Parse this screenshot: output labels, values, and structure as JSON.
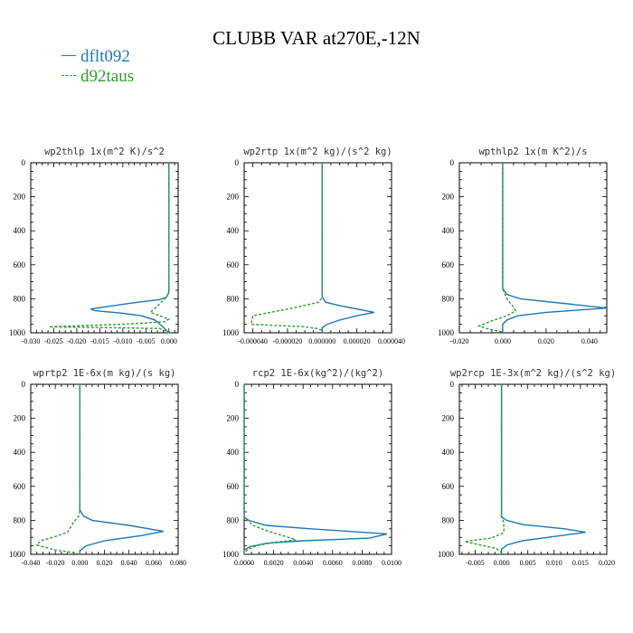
{
  "title": "CLUBB VAR at270E,-12N",
  "legend": [
    {
      "label": "dflt092",
      "color": "#1f77b4",
      "style": "solid"
    },
    {
      "label": "d92taus",
      "color": "#2ca02c",
      "style": "dashed"
    }
  ],
  "chart_data": [
    {
      "type": "line",
      "title": "wp2thlp  1x(m^2 K)/s^2",
      "xlim": [
        -0.03,
        0.002
      ],
      "ylim": [
        1000,
        0
      ],
      "xticks": [
        -0.03,
        -0.025,
        -0.02,
        -0.015,
        -0.01,
        -0.005,
        0.0
      ],
      "xtick_labels": [
        "-0.030",
        "-0.025",
        "-0.020",
        "-0.015",
        "-0.010",
        "-0.005",
        "0.000"
      ],
      "yticks": [
        0,
        200,
        400,
        600,
        800,
        1000
      ],
      "series": [
        {
          "name": "dflt092",
          "points": [
            [
              0,
              0
            ],
            [
              0,
              500
            ],
            [
              0,
              760
            ],
            [
              -0.0005,
              790
            ],
            [
              -0.002,
              805
            ],
            [
              -0.008,
              825
            ],
            [
              -0.017,
              860
            ],
            [
              -0.016,
              870
            ],
            [
              -0.01,
              885
            ],
            [
              -0.006,
              900
            ],
            [
              -0.003,
              925
            ],
            [
              -0.0015,
              960
            ],
            [
              0,
              1000
            ]
          ]
        },
        {
          "name": "d92taus",
          "points": [
            [
              0,
              0
            ],
            [
              0,
              500
            ],
            [
              0,
              760
            ],
            [
              -0.0005,
              790
            ],
            [
              -0.002,
              830
            ],
            [
              -0.004,
              880
            ],
            [
              -0.002,
              900
            ],
            [
              0,
              920
            ],
            [
              -0.001,
              935
            ],
            [
              -0.01,
              950
            ],
            [
              -0.026,
              965
            ],
            [
              -0.012,
              970
            ],
            [
              -0.002,
              975
            ],
            [
              0,
              1000
            ]
          ]
        }
      ]
    },
    {
      "type": "line",
      "title": "wp2rtp  1x(m^2 kg)/(s^2 kg)",
      "xlim": [
        -4.5e-05,
        4e-05
      ],
      "ylim": [
        1000,
        0
      ],
      "xticks": [
        -4e-05,
        -2e-05,
        0.0,
        2e-05,
        4e-05
      ],
      "xtick_labels": [
        "-0.000040",
        "-0.000020",
        "0.000000",
        "0.000020",
        "0.000040"
      ],
      "yticks": [
        0,
        200,
        400,
        600,
        800,
        1000
      ],
      "series": [
        {
          "name": "dflt092",
          "points": [
            [
              0,
              0
            ],
            [
              0,
              500
            ],
            [
              0,
              790
            ],
            [
              2e-06,
              820
            ],
            [
              1e-05,
              840
            ],
            [
              3e-05,
              880
            ],
            [
              2e-05,
              900
            ],
            [
              1e-05,
              925
            ],
            [
              3e-06,
              950
            ],
            [
              0,
              970
            ],
            [
              0,
              1000
            ]
          ]
        },
        {
          "name": "d92taus",
          "points": [
            [
              0,
              0
            ],
            [
              0,
              500
            ],
            [
              0,
              790
            ],
            [
              -2e-06,
              820
            ],
            [
              -1.5e-05,
              850
            ],
            [
              -4e-05,
              900
            ],
            [
              -4.1e-05,
              950
            ],
            [
              -1e-05,
              965
            ],
            [
              -3e-06,
              975
            ],
            [
              0,
              985
            ],
            [
              0,
              1000
            ]
          ]
        }
      ]
    },
    {
      "type": "line",
      "title": "wpthlp2  1x(m K^2)/s",
      "xlim": [
        -0.02,
        0.048
      ],
      "ylim": [
        1000,
        0
      ],
      "xticks": [
        -0.02,
        0.0,
        0.02,
        0.04
      ],
      "xtick_labels": [
        "-0.020",
        "0.000",
        "0.020",
        "0.040"
      ],
      "yticks": [
        0,
        200,
        400,
        600,
        800,
        1000
      ],
      "series": [
        {
          "name": "dflt092",
          "points": [
            [
              0,
              0
            ],
            [
              0,
              500
            ],
            [
              0,
              740
            ],
            [
              0.002,
              775
            ],
            [
              0.008,
              800
            ],
            [
              0.03,
              830
            ],
            [
              0.048,
              855
            ],
            [
              0.02,
              880
            ],
            [
              0.007,
              900
            ],
            [
              0.002,
              925
            ],
            [
              0,
              950
            ],
            [
              0,
              1000
            ]
          ]
        },
        {
          "name": "d92taus",
          "points": [
            [
              0,
              0
            ],
            [
              0,
              500
            ],
            [
              0,
              740
            ],
            [
              0.001,
              775
            ],
            [
              0.002,
              800
            ],
            [
              0.005,
              850
            ],
            [
              0.006,
              870
            ],
            [
              0.002,
              900
            ],
            [
              -0.005,
              930
            ],
            [
              -0.011,
              960
            ],
            [
              -0.006,
              980
            ],
            [
              0,
              995
            ],
            [
              0,
              1000
            ]
          ]
        }
      ]
    },
    {
      "type": "line",
      "title": "wprtp2  1E-6x(m kg)/(s kg)",
      "xlim": [
        -0.04,
        0.08
      ],
      "ylim": [
        1000,
        0
      ],
      "xticks": [
        -0.04,
        -0.02,
        0.0,
        0.02,
        0.04,
        0.06,
        0.08
      ],
      "xtick_labels": [
        "-0.040",
        "-0.020",
        "0.000",
        "0.020",
        "0.040",
        "0.060",
        "0.080"
      ],
      "yticks": [
        0,
        200,
        400,
        600,
        800,
        1000
      ],
      "series": [
        {
          "name": "dflt092",
          "points": [
            [
              0,
              0
            ],
            [
              0,
              500
            ],
            [
              0,
              740
            ],
            [
              0.003,
              775
            ],
            [
              0.01,
              800
            ],
            [
              0.04,
              830
            ],
            [
              0.068,
              865
            ],
            [
              0.05,
              890
            ],
            [
              0.02,
              920
            ],
            [
              0.005,
              950
            ],
            [
              0,
              980
            ],
            [
              0,
              1000
            ]
          ]
        },
        {
          "name": "d92taus",
          "points": [
            [
              0,
              0
            ],
            [
              0,
              500
            ],
            [
              0,
              740
            ],
            [
              -0.001,
              775
            ],
            [
              -0.005,
              810
            ],
            [
              -0.01,
              870
            ],
            [
              -0.02,
              895
            ],
            [
              -0.032,
              920
            ],
            [
              -0.035,
              945
            ],
            [
              -0.02,
              975
            ],
            [
              -0.005,
              990
            ],
            [
              0,
              1000
            ]
          ]
        }
      ]
    },
    {
      "type": "line",
      "title": "rcp2  1E-6x(kg^2)/(kg^2)",
      "xlim": [
        0.0,
        0.01
      ],
      "ylim": [
        1000,
        0
      ],
      "xticks": [
        0.0,
        0.002,
        0.004,
        0.006,
        0.008,
        0.01
      ],
      "xtick_labels": [
        "0.0000",
        "0.0020",
        "0.0040",
        "0.0060",
        "0.0080",
        "0.0100"
      ],
      "yticks": [
        0,
        200,
        400,
        600,
        800,
        1000
      ],
      "series": [
        {
          "name": "dflt092",
          "points": [
            [
              0,
              0
            ],
            [
              0,
              780
            ],
            [
              0.0003,
              800
            ],
            [
              0.0015,
              830
            ],
            [
              0.0045,
              850
            ],
            [
              0.0097,
              880
            ],
            [
              0.0085,
              905
            ],
            [
              0.004,
              920
            ],
            [
              0.0015,
              935
            ],
            [
              0.0004,
              955
            ],
            [
              0,
              975
            ],
            [
              0,
              1000
            ]
          ]
        },
        {
          "name": "d92taus",
          "points": [
            [
              0,
              0
            ],
            [
              0,
              780
            ],
            [
              0.0002,
              800
            ],
            [
              0.0006,
              830
            ],
            [
              0.0015,
              860
            ],
            [
              0.003,
              900
            ],
            [
              0.0035,
              915
            ],
            [
              0.002,
              930
            ],
            [
              0.0008,
              950
            ],
            [
              0.0002,
              975
            ],
            [
              0,
              1000
            ]
          ]
        }
      ]
    },
    {
      "type": "line",
      "title": "wp2rcp  1E-3x(m^2 kg)/(s^2 kg)",
      "xlim": [
        -0.008,
        0.02
      ],
      "ylim": [
        1000,
        0
      ],
      "xticks": [
        -0.005,
        0.0,
        0.005,
        0.01,
        0.015,
        0.02
      ],
      "xtick_labels": [
        "-0.005",
        "0.000",
        "0.005",
        "0.010",
        "0.015",
        "0.020"
      ],
      "yticks": [
        0,
        200,
        400,
        600,
        800,
        1000
      ],
      "series": [
        {
          "name": "dflt092",
          "points": [
            [
              0,
              0
            ],
            [
              0,
              500
            ],
            [
              0,
              780
            ],
            [
              0.001,
              800
            ],
            [
              0.004,
              825
            ],
            [
              0.012,
              850
            ],
            [
              0.016,
              870
            ],
            [
              0.01,
              895
            ],
            [
              0.004,
              920
            ],
            [
              0.001,
              945
            ],
            [
              0,
              970
            ],
            [
              0,
              1000
            ]
          ]
        },
        {
          "name": "d92taus",
          "points": [
            [
              0,
              0
            ],
            [
              0,
              500
            ],
            [
              0,
              780
            ],
            [
              0.0003,
              800
            ],
            [
              0.0005,
              850
            ],
            [
              0.0003,
              875
            ],
            [
              -0.002,
              905
            ],
            [
              -0.007,
              925
            ],
            [
              -0.004,
              945
            ],
            [
              -0.001,
              965
            ],
            [
              0,
              990
            ],
            [
              0,
              1000
            ]
          ]
        }
      ]
    }
  ]
}
